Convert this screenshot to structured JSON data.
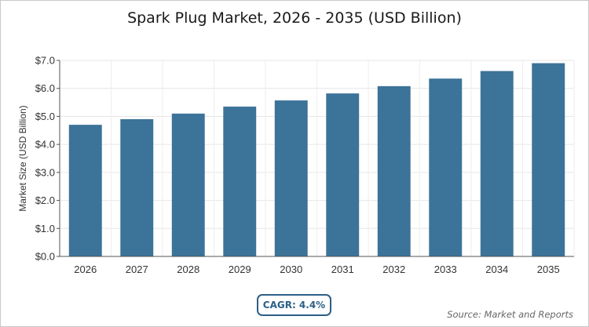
{
  "chart_data": {
    "type": "bar",
    "title": "Spark Plug Market, 2026 - 2035 (USD Billion)",
    "ylabel": "Market Size (USD Billion)",
    "xlabel": "",
    "categories": [
      "2026",
      "2027",
      "2028",
      "2029",
      "2030",
      "2031",
      "2032",
      "2033",
      "2034",
      "2035"
    ],
    "values": [
      4.7,
      4.9,
      5.1,
      5.35,
      5.57,
      5.82,
      6.08,
      6.35,
      6.62,
      6.9
    ],
    "ylim": [
      0,
      7
    ],
    "yticks": [
      0,
      1,
      2,
      3,
      4,
      5,
      6,
      7
    ],
    "ytick_labels": [
      "$0.0",
      "$1.0",
      "$2.0",
      "$3.0",
      "$4.0",
      "$5.0",
      "$6.0",
      "$7.0"
    ],
    "grid": true,
    "bar_color": "#3c7399"
  },
  "cagr_label": "CAGR: 4.4%",
  "source_label": "Source: Market and Reports"
}
